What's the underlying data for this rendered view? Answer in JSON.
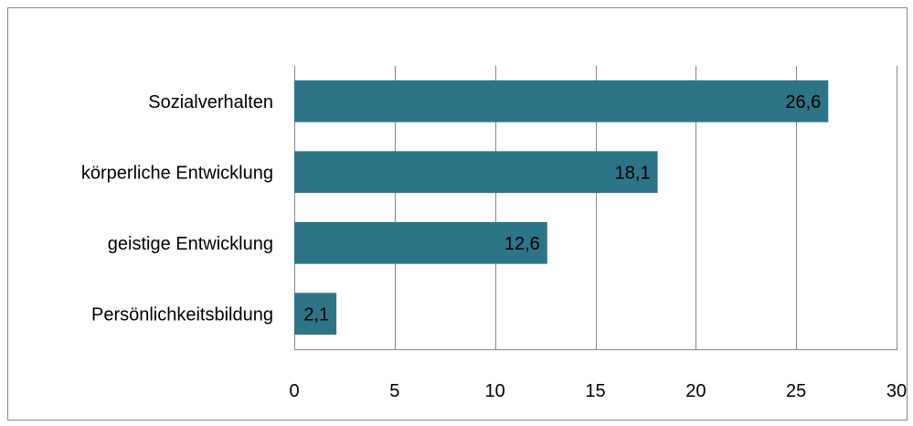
{
  "chart_data": {
    "type": "bar",
    "orientation": "horizontal",
    "categories": [
      "Sozialverhalten",
      "körperliche Entwicklung",
      "geistige Entwicklung",
      "Persönlichkeitsbildung"
    ],
    "values": [
      26.6,
      18.1,
      12.6,
      2.1
    ],
    "value_labels": [
      "26,6",
      "18,1",
      "12,6",
      "2,1"
    ],
    "xlim": [
      0,
      30
    ],
    "xticks": [
      0,
      5,
      10,
      15,
      20,
      25,
      30
    ],
    "tick_labels": [
      "0",
      "5",
      "10",
      "15",
      "20",
      "25",
      "30"
    ],
    "grid": "vertical",
    "legend": "none",
    "title": "",
    "xlabel": "",
    "ylabel": "",
    "colors": {
      "bar": "#2e7488",
      "grid": "#868686",
      "frame": "#8a8a8a"
    }
  }
}
